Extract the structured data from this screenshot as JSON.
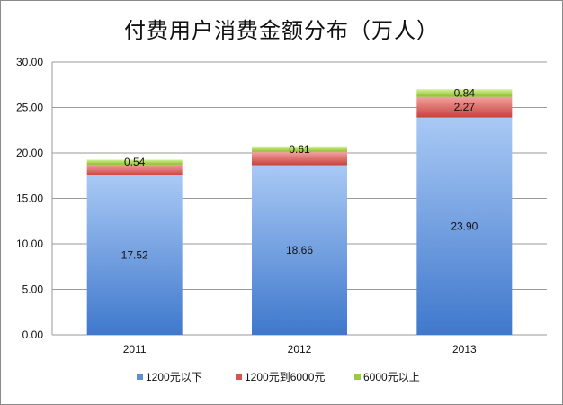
{
  "chart_data": {
    "type": "bar",
    "stacked": true,
    "title": "付费用户消费金额分布（万人）",
    "categories": [
      "2011",
      "2012",
      "2013"
    ],
    "series": [
      {
        "name": "1200元以下",
        "values": [
          17.52,
          18.66,
          23.9
        ],
        "labels": [
          "17.52",
          "18.66",
          "23.90"
        ],
        "color": "#5b8fd8"
      },
      {
        "name": "1200元到6000元",
        "values": [
          1.2,
          1.45,
          2.27
        ],
        "labels": [
          "",
          "",
          "2.27"
        ],
        "color": "#d9534f"
      },
      {
        "name": "6000元以上",
        "values": [
          0.54,
          0.61,
          0.84
        ],
        "labels": [
          "0.54",
          "0.61",
          "0.84"
        ],
        "color": "#9ccc3c"
      }
    ],
    "ylim": [
      0,
      30
    ],
    "yticks": [
      "0.00",
      "5.00",
      "10.00",
      "15.00",
      "20.00",
      "25.00",
      "30.00"
    ],
    "grid": true,
    "legend_position": "bottom"
  }
}
